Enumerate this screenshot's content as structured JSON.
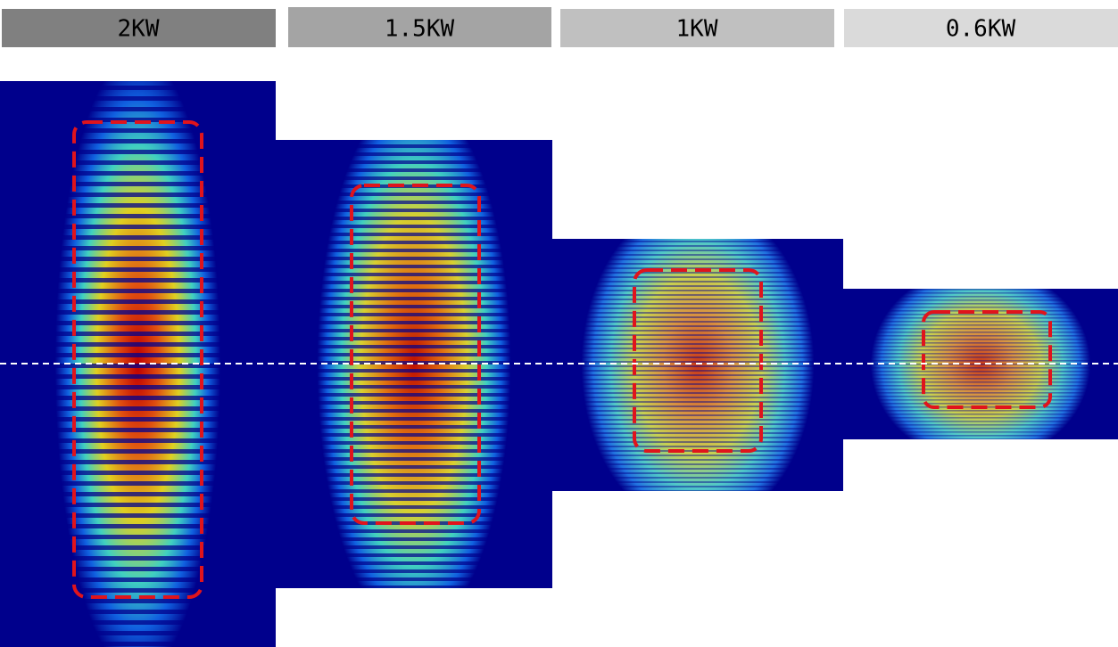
{
  "panels": [
    {
      "label": "2KW"
    },
    {
      "label": "1.5KW"
    },
    {
      "label": "1KW"
    },
    {
      "label": "0.6KW"
    }
  ]
}
